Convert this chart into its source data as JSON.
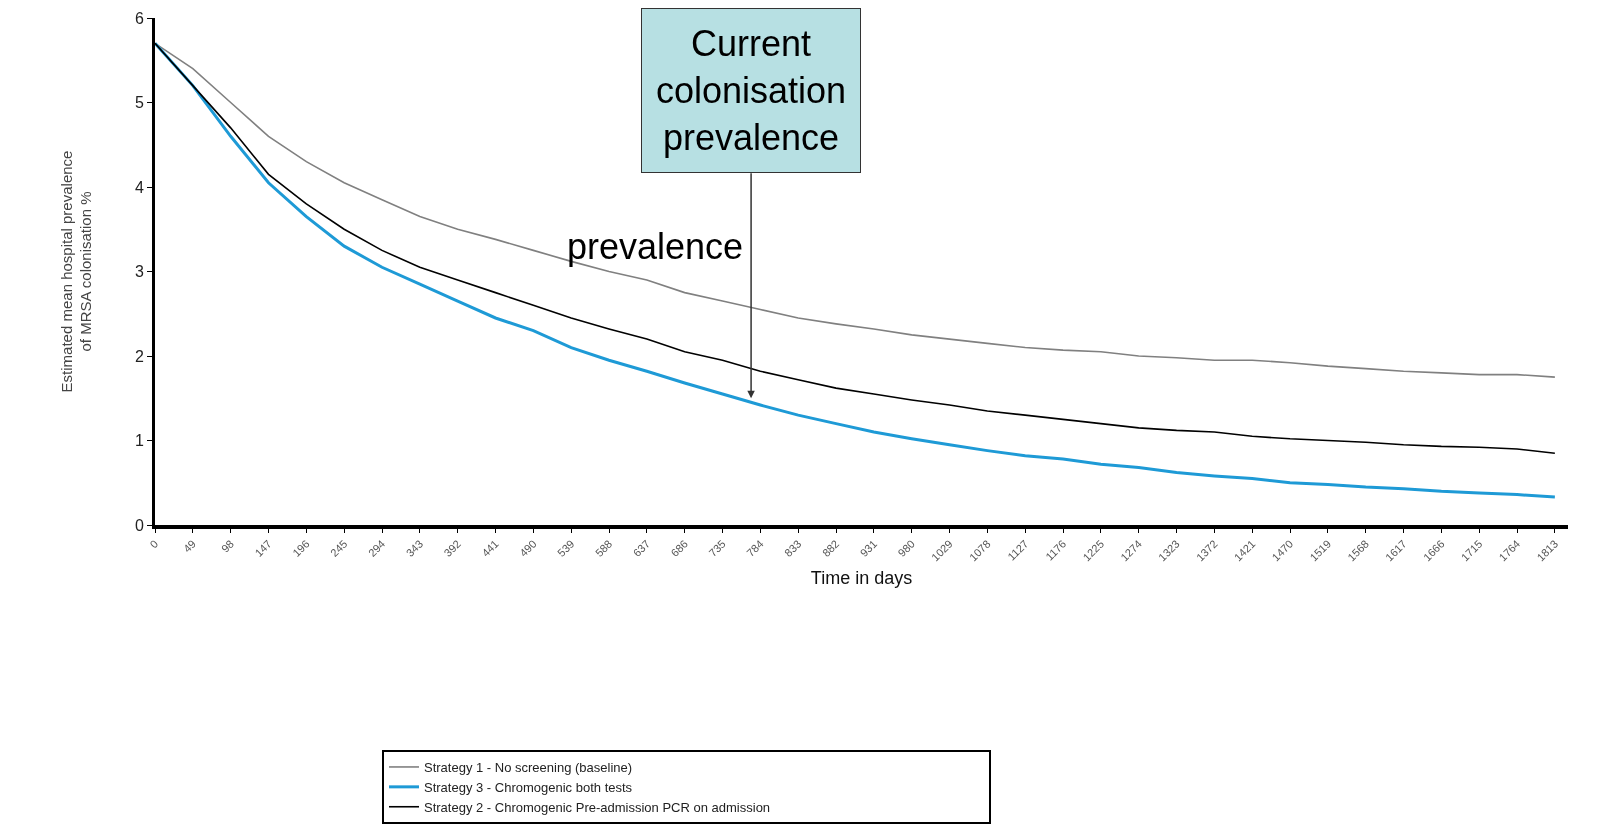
{
  "chart_data": {
    "type": "line",
    "xlabel": "Time in days",
    "ylabel": "Estimated mean hospital prevalence\nof MRSA colonisation %",
    "x": [
      0,
      49,
      98,
      147,
      196,
      245,
      294,
      343,
      392,
      441,
      490,
      539,
      588,
      637,
      686,
      735,
      784,
      833,
      882,
      931,
      980,
      1029,
      1078,
      1127,
      1176,
      1225,
      1274,
      1323,
      1372,
      1421,
      1470,
      1519,
      1568,
      1617,
      1666,
      1715,
      1764,
      1813
    ],
    "series": [
      {
        "name": "Strategy 1 - No screening (baseline)",
        "color": "#808080",
        "values": [
          5.7,
          5.4,
          5.0,
          4.6,
          4.3,
          4.05,
          3.85,
          3.65,
          3.5,
          3.38,
          3.25,
          3.12,
          3.0,
          2.9,
          2.75,
          2.65,
          2.55,
          2.45,
          2.38,
          2.32,
          2.25,
          2.2,
          2.15,
          2.1,
          2.07,
          2.05,
          2.0,
          1.98,
          1.95,
          1.95,
          1.92,
          1.88,
          1.85,
          1.82,
          1.8,
          1.78,
          1.78,
          1.75
        ]
      },
      {
        "name": "Strategy 3 - Chromogenic both tests",
        "color": "#1e9ad6",
        "values": [
          5.7,
          5.2,
          4.6,
          4.05,
          3.65,
          3.3,
          3.05,
          2.85,
          2.65,
          2.45,
          2.3,
          2.1,
          1.95,
          1.82,
          1.68,
          1.55,
          1.42,
          1.3,
          1.2,
          1.1,
          1.02,
          0.95,
          0.88,
          0.82,
          0.78,
          0.72,
          0.68,
          0.62,
          0.58,
          0.55,
          0.5,
          0.48,
          0.45,
          0.43,
          0.4,
          0.38,
          0.36,
          0.33
        ]
      },
      {
        "name": "Strategy 2 - Chromogenic Pre-admission PCR on admission",
        "color": "#000000",
        "values": [
          5.7,
          5.2,
          4.7,
          4.15,
          3.8,
          3.5,
          3.25,
          3.05,
          2.9,
          2.75,
          2.6,
          2.45,
          2.32,
          2.2,
          2.05,
          1.95,
          1.82,
          1.72,
          1.62,
          1.55,
          1.48,
          1.42,
          1.35,
          1.3,
          1.25,
          1.2,
          1.15,
          1.12,
          1.1,
          1.05,
          1.02,
          1.0,
          0.98,
          0.95,
          0.93,
          0.92,
          0.9,
          0.85
        ]
      }
    ],
    "xlim": [
      0,
      1830
    ],
    "xticks": [
      0,
      49,
      98,
      147,
      196,
      245,
      294,
      343,
      392,
      441,
      490,
      539,
      588,
      637,
      686,
      735,
      784,
      833,
      882,
      931,
      980,
      1029,
      1078,
      1127,
      1176,
      1225,
      1274,
      1323,
      1372,
      1421,
      1470,
      1519,
      1568,
      1617,
      1666,
      1715,
      1764,
      1813
    ],
    "ylim": [
      0,
      6
    ],
    "yticks": [
      0,
      1,
      2,
      3,
      4,
      5,
      6
    ],
    "annotations": [
      {
        "text": "Current\ncolonisation\nprevalence",
        "x": 772,
        "y": 1.5
      },
      "prevalence"
    ],
    "grid": false,
    "legend": "bottom",
    "marker": "none",
    "line_style": "solid"
  }
}
